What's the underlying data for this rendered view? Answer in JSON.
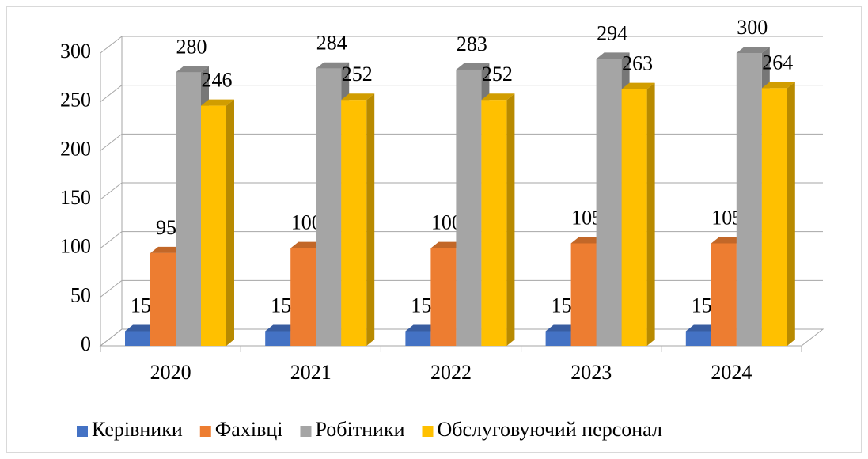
{
  "chart_data": {
    "type": "bar3d",
    "categories": [
      "2020",
      "2021",
      "2022",
      "2023",
      "2024"
    ],
    "series": [
      {
        "name": "Керівники",
        "color": "#4472c4",
        "values": [
          15,
          15,
          15,
          15,
          15
        ]
      },
      {
        "name": "Фахівці",
        "color": "#ed7d31",
        "values": [
          95,
          100,
          100,
          105,
          105
        ]
      },
      {
        "name": "Робітники",
        "color": "#a5a5a5",
        "values": [
          280,
          284,
          283,
          294,
          300
        ]
      },
      {
        "name": "Обслуговуючий персонал",
        "color": "#ffc000",
        "values": [
          246,
          252,
          252,
          263,
          264
        ]
      }
    ],
    "ylim": [
      0,
      300
    ],
    "yticks": [
      0,
      50,
      100,
      150,
      200,
      250,
      300
    ],
    "grid": true,
    "legend": "bottom"
  }
}
